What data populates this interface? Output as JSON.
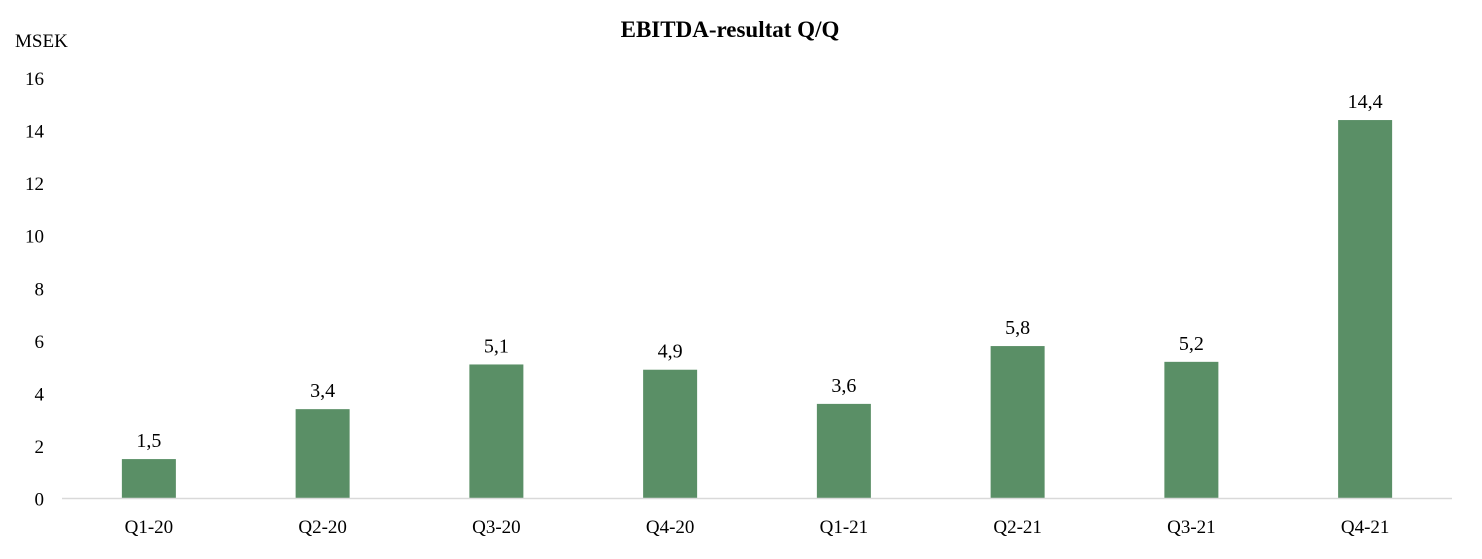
{
  "chart_data": {
    "type": "bar",
    "title": "EBITDA-resultat Q/Q",
    "ylabel": "MSEK",
    "xlabel": "",
    "categories": [
      "Q1-20",
      "Q2-20",
      "Q3-20",
      "Q4-20",
      "Q1-21",
      "Q2-21",
      "Q3-21",
      "Q4-21"
    ],
    "values": [
      1.5,
      3.4,
      5.1,
      4.9,
      3.6,
      5.8,
      5.2,
      14.4
    ],
    "value_labels": [
      "1,5",
      "3,4",
      "5,1",
      "4,9",
      "3,6",
      "5,8",
      "5,2",
      "14,4"
    ],
    "yticks": [
      0,
      2,
      4,
      6,
      8,
      10,
      12,
      14,
      16
    ],
    "ylim": [
      0,
      16
    ],
    "grid": false,
    "legend": "none",
    "bar_color": "#5a8f66",
    "axis_color": "#d9d9d9"
  }
}
